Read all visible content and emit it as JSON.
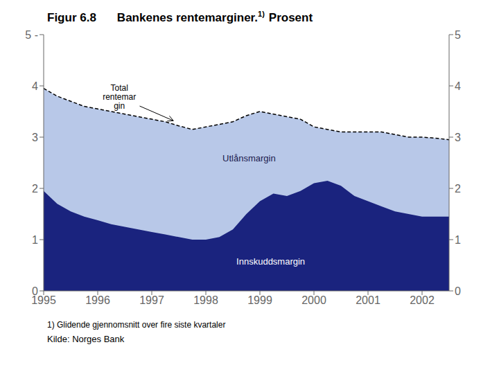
{
  "chart_data": {
    "type": "area",
    "title": "Figur 6.8",
    "subtitle": [
      "Bankenes rentemarginer.",
      "1)",
      "Prosent"
    ],
    "footnote": "1) Glidende gjennomsnitt over fire siste kvartaler",
    "source": "Kilde: Norges Bank",
    "x": [
      1995.0,
      1995.25,
      1995.5,
      1995.75,
      1996.0,
      1996.25,
      1996.5,
      1996.75,
      1997.0,
      1997.25,
      1997.5,
      1997.75,
      1998.0,
      1998.25,
      1998.5,
      1998.75,
      1999.0,
      1999.25,
      1999.5,
      1999.75,
      2000.0,
      2000.25,
      2000.5,
      2000.75,
      2001.0,
      2001.25,
      2001.5,
      2001.75,
      2002.0,
      2002.25,
      2002.5
    ],
    "series": [
      {
        "type": "area",
        "color": "#b8c8e8",
        "values": [
          3.95,
          3.8,
          3.7,
          3.6,
          3.55,
          3.5,
          3.45,
          3.4,
          3.35,
          3.3,
          3.22,
          3.15,
          3.2,
          3.25,
          3.3,
          3.42,
          3.5,
          3.45,
          3.4,
          3.35,
          3.2,
          3.15,
          3.1,
          3.1,
          3.1,
          3.1,
          3.05,
          3.0,
          3.0,
          2.98,
          2.95
        ]
      },
      {
        "type": "area",
        "color": "#1a237e",
        "values": [
          1.95,
          1.7,
          1.55,
          1.45,
          1.38,
          1.3,
          1.25,
          1.2,
          1.15,
          1.1,
          1.05,
          1.0,
          1.0,
          1.05,
          1.2,
          1.5,
          1.75,
          1.9,
          1.85,
          1.95,
          2.1,
          2.15,
          2.05,
          1.85,
          1.75,
          1.65,
          1.55,
          1.5,
          1.45,
          1.45,
          1.45
        ]
      },
      {
        "type": "line",
        "color": "#000000",
        "line_style": "dashed",
        "values": [
          3.95,
          3.8,
          3.7,
          3.6,
          3.55,
          3.5,
          3.45,
          3.4,
          3.35,
          3.3,
          3.22,
          3.15,
          3.2,
          3.25,
          3.3,
          3.42,
          3.5,
          3.45,
          3.4,
          3.35,
          3.2,
          3.15,
          3.1,
          3.1,
          3.1,
          3.1,
          3.05,
          3.0,
          3.0,
          2.98,
          2.95
        ]
      }
    ],
    "xlim": [
      1995,
      2002.5
    ],
    "xticks": [
      1995,
      1996,
      1997,
      1998,
      1999,
      2000,
      2001,
      2002
    ],
    "ylim": [
      0,
      5
    ],
    "yticks": [
      0,
      1,
      2,
      3,
      4,
      {
        "value": 5,
        "label": "5 -"
      }
    ],
    "y2lim": [
      0,
      5
    ],
    "y2ticks": [
      0,
      1,
      2,
      3,
      4,
      5
    ],
    "grid": false,
    "annotations": [
      {
        "text": "Total\nrentemar\ngin",
        "x": 1996.4,
        "y": 3.78,
        "arrow_x": 1997.4,
        "arrow_y": 3.32
      },
      {
        "text": "Utlånsmargin",
        "x": 1998.8,
        "y": 2.6,
        "color": "#1a1a4e"
      },
      {
        "text": "Innskuddsmargin",
        "x": 1999.2,
        "y": 0.58,
        "color": "#ffffff"
      }
    ]
  }
}
